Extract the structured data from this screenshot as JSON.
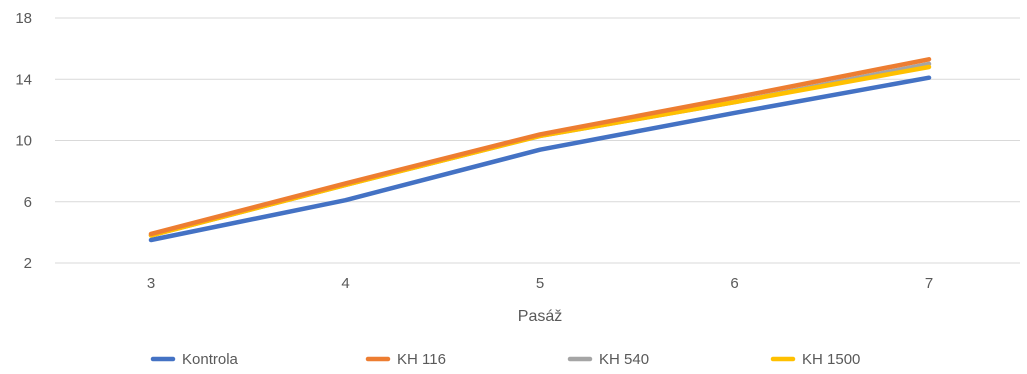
{
  "chart_data": {
    "type": "line",
    "title": "",
    "xlabel": "Pasáž",
    "ylabel": "",
    "categories": [
      "3",
      "4",
      "5",
      "6",
      "7"
    ],
    "ylim": [
      2,
      18
    ],
    "yticks": [
      2,
      6,
      10,
      14,
      18
    ],
    "grid": true,
    "legend_position": "bottom",
    "series": [
      {
        "name": "Kontrola",
        "color": "#4472C4",
        "values": [
          3.5,
          6.1,
          9.4,
          11.8,
          14.1
        ]
      },
      {
        "name": "KH 540",
        "color": "#A5A5A5",
        "values": [
          3.8,
          7.1,
          10.3,
          12.5,
          15.0
        ]
      },
      {
        "name": "KH 1500",
        "color": "#FFC000",
        "values": [
          3.8,
          7.1,
          10.3,
          12.5,
          14.8
        ]
      },
      {
        "name": "KH 116",
        "color": "#ED7D31",
        "values": [
          3.9,
          7.2,
          10.4,
          12.8,
          15.3
        ]
      }
    ],
    "legend_order": [
      "Kontrola",
      "KH 116",
      "KH 540",
      "KH 1500"
    ]
  }
}
